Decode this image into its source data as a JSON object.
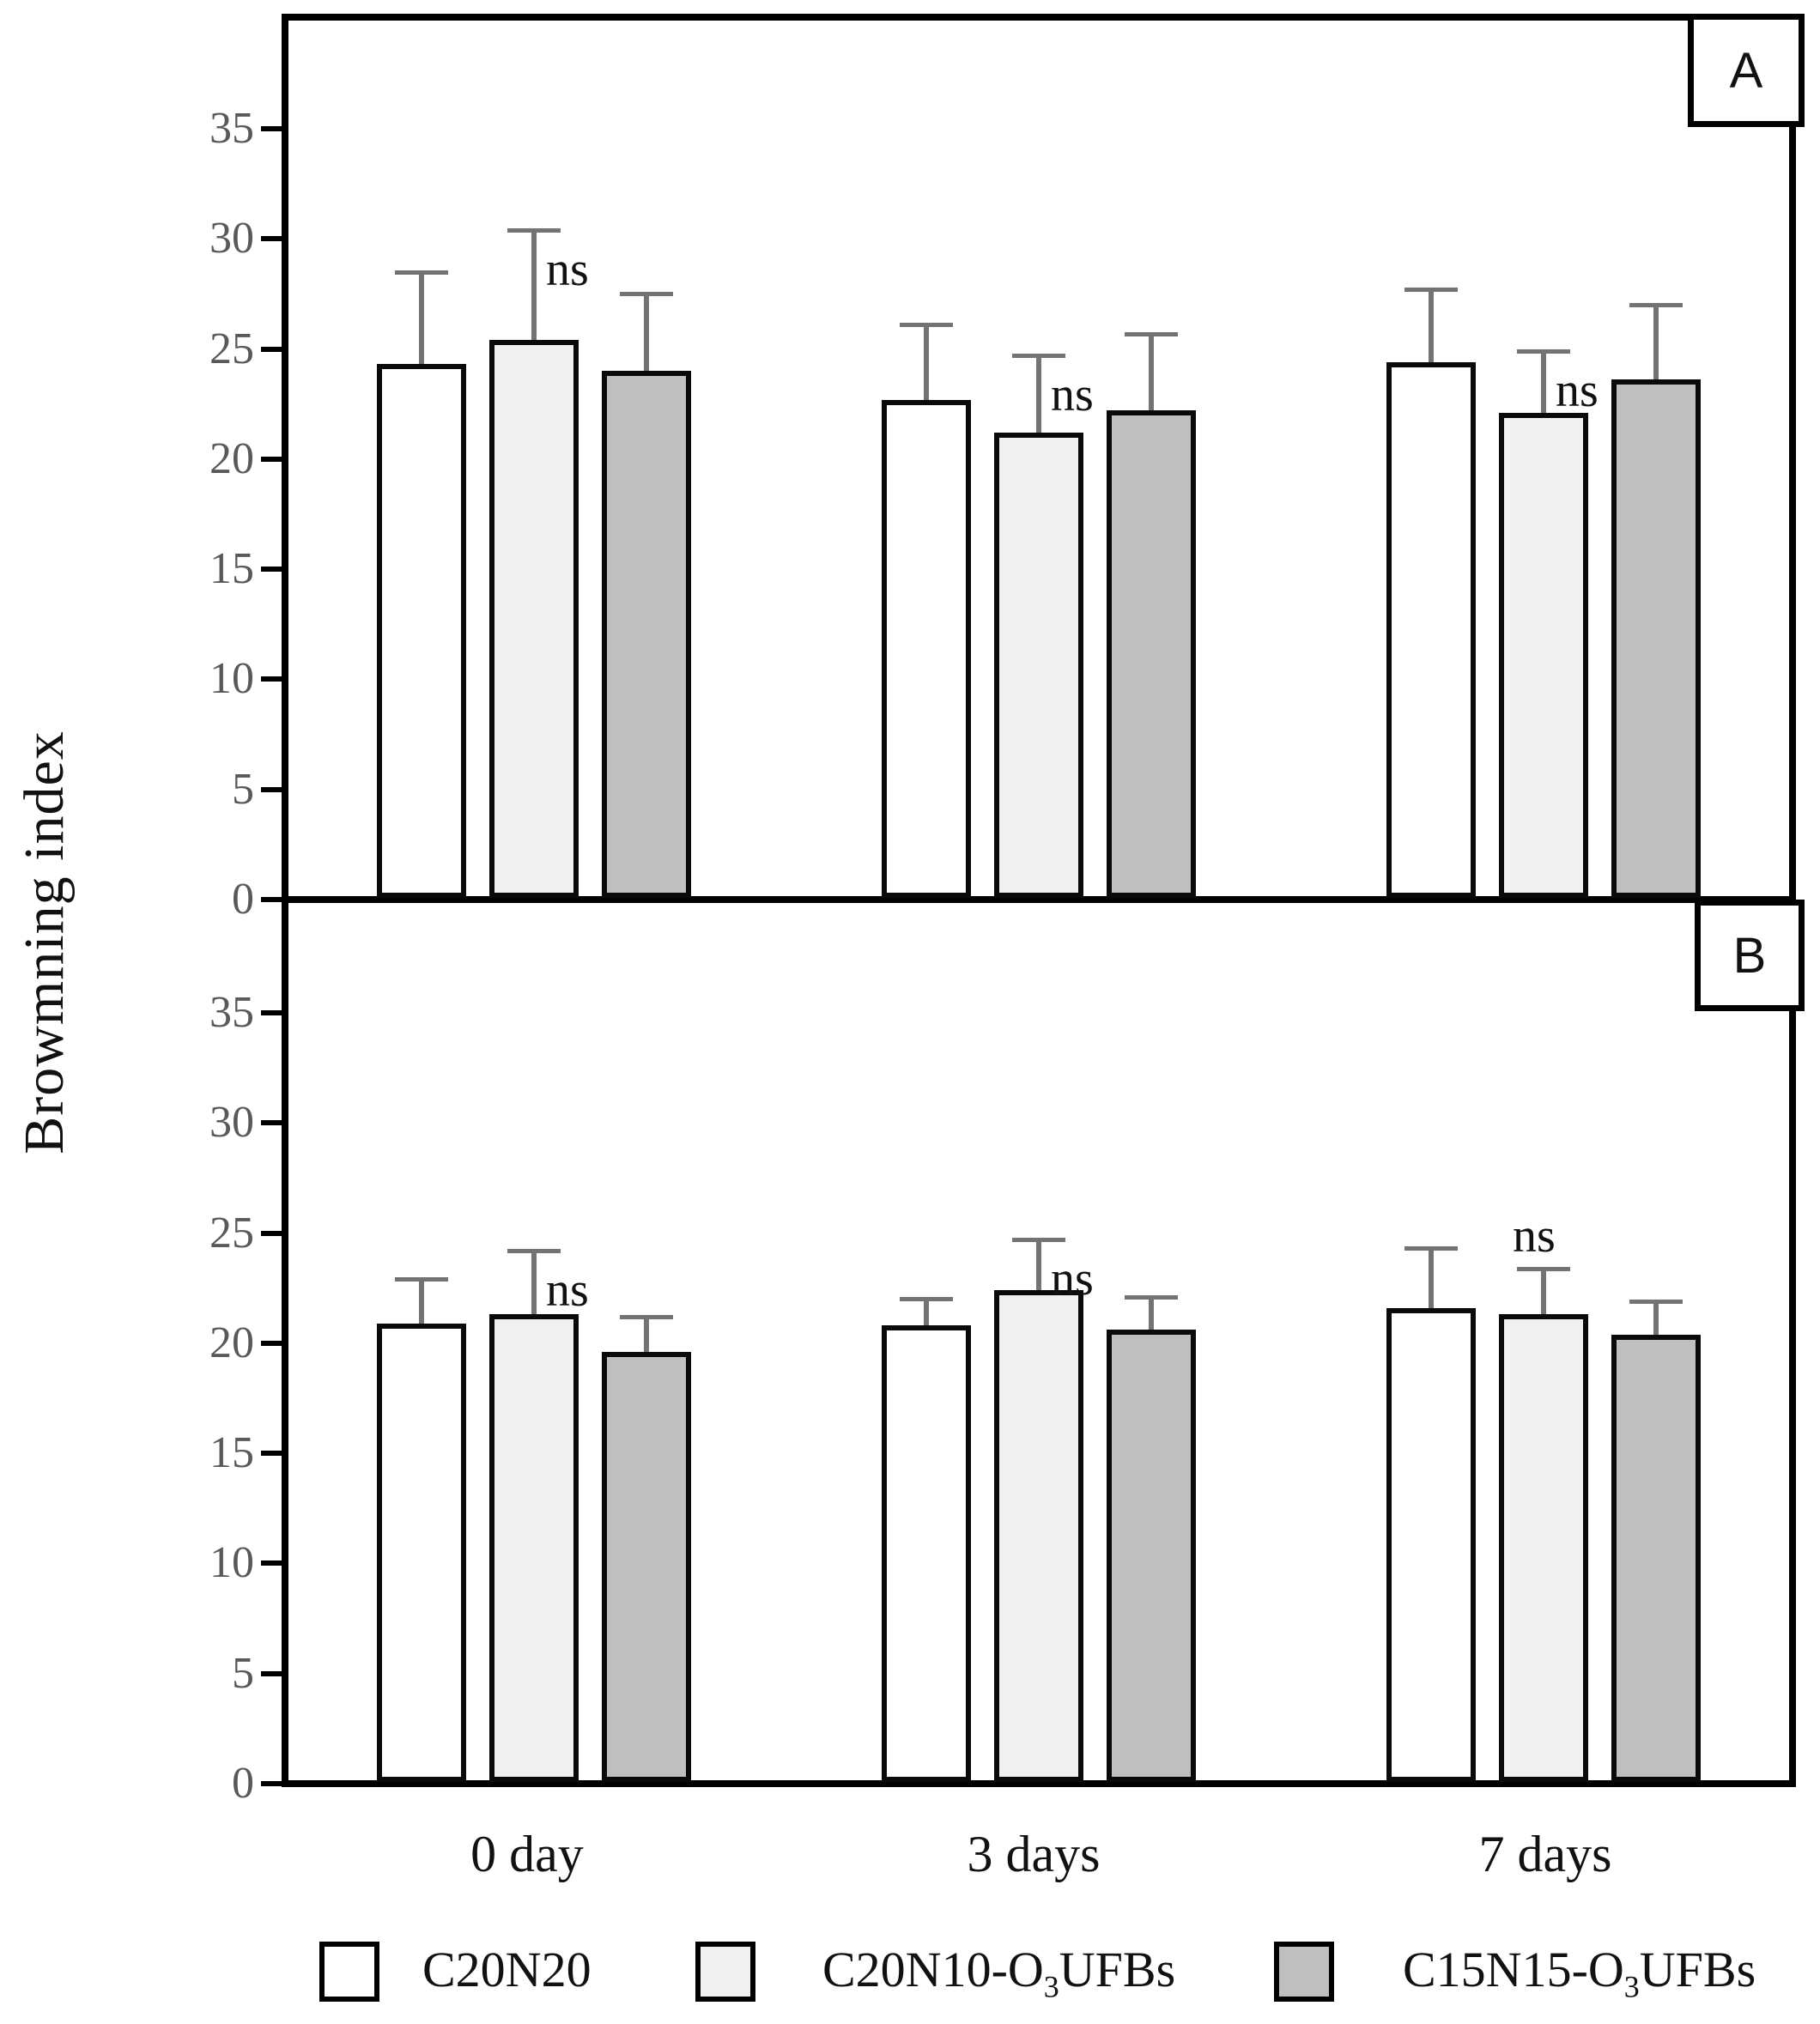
{
  "figure": {
    "y_axis_title": "Browmning index",
    "panel_a_label": "A",
    "panel_b_label": "B",
    "x_labels": [
      "0 day",
      "3 days",
      "7 days"
    ],
    "legend": [
      {
        "main": "C20N20",
        "sub": "",
        "end": "",
        "color": "#ffffff"
      },
      {
        "main": "C20N10-O",
        "sub": "3",
        "end": "UFBs",
        "color": "#f0f0f0"
      },
      {
        "main": "C15N15-O",
        "sub": "3",
        "end": "UFBs",
        "color": "#bfbfbf"
      }
    ],
    "colors": {
      "bar_border": "#0a0a0a",
      "error_bar": "#737373",
      "tick_label": "#595959",
      "axis": "#000000"
    }
  },
  "chart_data": [
    {
      "type": "bar",
      "panel": "A",
      "categories": [
        "0 day",
        "3 days",
        "7 days"
      ],
      "series": [
        {
          "name": "C20N20",
          "fill": "#ffffff",
          "values": [
            24.3,
            22.7,
            24.4
          ],
          "errors": [
            4.2,
            3.4,
            3.3
          ]
        },
        {
          "name": "C20N10-O3UFBs",
          "fill": "#f0f0f0",
          "values": [
            25.4,
            21.2,
            22.1
          ],
          "errors": [
            5.0,
            3.5,
            2.8
          ]
        },
        {
          "name": "C15N15-O3UFBs",
          "fill": "#bfbfbf",
          "values": [
            24.0,
            22.2,
            23.6
          ],
          "errors": [
            3.5,
            3.5,
            3.4
          ]
        }
      ],
      "annotations": [
        {
          "text": "ns",
          "group": 0,
          "series": 1,
          "placement": "right"
        },
        {
          "text": "ns",
          "group": 1,
          "series": 1,
          "placement": "right"
        },
        {
          "text": "ns",
          "group": 2,
          "series": 1,
          "placement": "right"
        }
      ],
      "ylabel": "Browmning index",
      "yticks": [
        0,
        5,
        10,
        15,
        20,
        25,
        30,
        35
      ],
      "ylim": [
        0,
        40
      ],
      "grid": false,
      "legend_position": "bottom"
    },
    {
      "type": "bar",
      "panel": "B",
      "categories": [
        "0 day",
        "3 days",
        "7 days"
      ],
      "series": [
        {
          "name": "C20N20",
          "fill": "#ffffff",
          "values": [
            20.9,
            20.8,
            21.6
          ],
          "errors": [
            2.0,
            1.2,
            2.7
          ]
        },
        {
          "name": "C20N10-O3UFBs",
          "fill": "#f0f0f0",
          "values": [
            21.3,
            22.4,
            21.3
          ],
          "errors": [
            2.9,
            2.3,
            2.1
          ]
        },
        {
          "name": "C15N15-O3UFBs",
          "fill": "#bfbfbf",
          "values": [
            19.6,
            20.6,
            20.4
          ],
          "errors": [
            1.6,
            1.5,
            1.5
          ]
        }
      ],
      "annotations": [
        {
          "text": "ns",
          "group": 0,
          "series": 1,
          "placement": "right"
        },
        {
          "text": "ns",
          "group": 1,
          "series": 1,
          "placement": "right"
        },
        {
          "text": "ns",
          "group": 2,
          "series": 1,
          "placement": "above"
        }
      ],
      "ylabel": "Browmning index",
      "yticks": [
        0,
        5,
        10,
        15,
        20,
        25,
        30,
        35
      ],
      "ylim": [
        0,
        40
      ],
      "grid": false,
      "legend_position": "bottom"
    }
  ]
}
